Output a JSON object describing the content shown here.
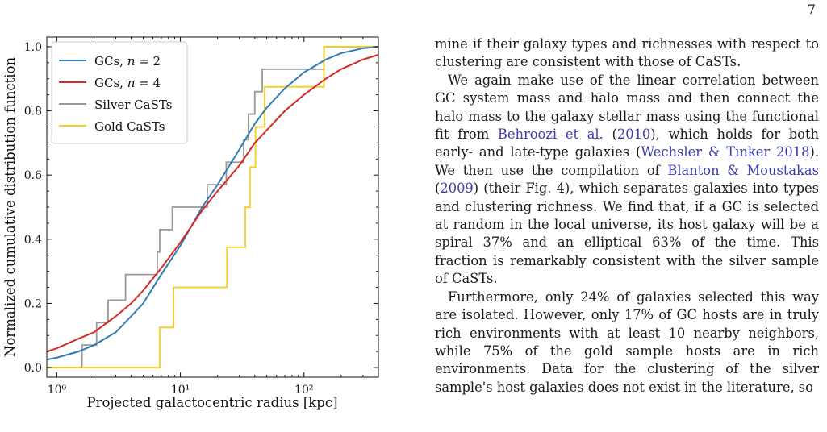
{
  "page_number": "7",
  "chart_data": {
    "type": "line",
    "title": "",
    "xlabel": "Projected galactocentric radius [kpc]",
    "ylabel": "Normalized cumulative distribution function",
    "x_scale": "log",
    "xlim": [
      0.83,
      400
    ],
    "ylim": [
      -0.03,
      1.03
    ],
    "x_tick_values": [
      1,
      10,
      100
    ],
    "x_tick_labels": [
      "10⁰",
      "10¹",
      "10²"
    ],
    "y_ticks": [
      0.0,
      0.2,
      0.4,
      0.6,
      0.8,
      1.0
    ],
    "y_tick_labels": [
      "0.0",
      "0.2",
      "0.4",
      "0.6",
      "0.8",
      "1.0"
    ],
    "grid": false,
    "legend_position": "top-left",
    "series": [
      {
        "name": "GCs, n = 2",
        "style": "line",
        "color": "#2f7bb5",
        "points": [
          [
            0.83,
            0.025
          ],
          [
            1,
            0.031
          ],
          [
            1.5,
            0.05
          ],
          [
            2,
            0.07
          ],
          [
            3,
            0.11
          ],
          [
            4,
            0.16
          ],
          [
            5,
            0.2
          ],
          [
            7,
            0.29
          ],
          [
            10,
            0.38
          ],
          [
            15,
            0.5
          ],
          [
            20,
            0.57
          ],
          [
            30,
            0.68
          ],
          [
            40,
            0.76
          ],
          [
            50,
            0.81
          ],
          [
            70,
            0.87
          ],
          [
            100,
            0.92
          ],
          [
            150,
            0.96
          ],
          [
            200,
            0.98
          ],
          [
            300,
            0.995
          ],
          [
            400,
            1.0
          ]
        ]
      },
      {
        "name": "GCs, n = 4",
        "style": "line",
        "color": "#d62a24",
        "points": [
          [
            0.83,
            0.05
          ],
          [
            1,
            0.06
          ],
          [
            1.5,
            0.09
          ],
          [
            2,
            0.11
          ],
          [
            3,
            0.16
          ],
          [
            4,
            0.2
          ],
          [
            5,
            0.24
          ],
          [
            7,
            0.31
          ],
          [
            10,
            0.39
          ],
          [
            15,
            0.49
          ],
          [
            20,
            0.55
          ],
          [
            30,
            0.63
          ],
          [
            40,
            0.7
          ],
          [
            50,
            0.74
          ],
          [
            70,
            0.8
          ],
          [
            100,
            0.85
          ],
          [
            150,
            0.9
          ],
          [
            200,
            0.93
          ],
          [
            300,
            0.96
          ],
          [
            400,
            0.975
          ]
        ]
      },
      {
        "name": "Silver CaSTs",
        "style": "step",
        "color": "#999999",
        "points": [
          [
            0.83,
            0.0
          ],
          [
            1.6,
            0.0
          ],
          [
            1.6,
            0.07
          ],
          [
            2.1,
            0.07
          ],
          [
            2.1,
            0.14
          ],
          [
            2.6,
            0.14
          ],
          [
            2.6,
            0.21
          ],
          [
            3.6,
            0.21
          ],
          [
            3.6,
            0.29
          ],
          [
            6.5,
            0.29
          ],
          [
            6.5,
            0.36
          ],
          [
            6.8,
            0.36
          ],
          [
            6.8,
            0.43
          ],
          [
            8.6,
            0.43
          ],
          [
            8.6,
            0.5
          ],
          [
            16.5,
            0.5
          ],
          [
            16.5,
            0.57
          ],
          [
            23.5,
            0.57
          ],
          [
            23.5,
            0.64
          ],
          [
            32.5,
            0.64
          ],
          [
            32.5,
            0.71
          ],
          [
            35.5,
            0.71
          ],
          [
            35.5,
            0.79
          ],
          [
            40,
            0.79
          ],
          [
            40,
            0.86
          ],
          [
            46,
            0.86
          ],
          [
            46,
            0.93
          ],
          [
            145,
            0.93
          ],
          [
            145,
            1.0
          ],
          [
            400,
            1.0
          ]
        ]
      },
      {
        "name": "Gold CaSTs",
        "style": "step",
        "color": "#f7ce1c",
        "points": [
          [
            0.83,
            0.0
          ],
          [
            6.8,
            0.0
          ],
          [
            6.8,
            0.125
          ],
          [
            8.8,
            0.125
          ],
          [
            8.8,
            0.25
          ],
          [
            23.8,
            0.25
          ],
          [
            23.8,
            0.375
          ],
          [
            33.5,
            0.375
          ],
          [
            33.5,
            0.5
          ],
          [
            36.5,
            0.5
          ],
          [
            36.5,
            0.625
          ],
          [
            40.5,
            0.625
          ],
          [
            40.5,
            0.75
          ],
          [
            48,
            0.75
          ],
          [
            48,
            0.875
          ],
          [
            145,
            0.875
          ],
          [
            145,
            1.0
          ],
          [
            400,
            1.0
          ]
        ]
      }
    ]
  },
  "legend": [
    {
      "prefix": "GCs, ",
      "var": "n",
      "suffix": " = 2"
    },
    {
      "prefix": "GCs, ",
      "var": "n",
      "suffix": " = 4"
    },
    {
      "prefix": "Silver CaSTs",
      "var": "",
      "suffix": ""
    },
    {
      "prefix": "Gold CaSTs",
      "var": "",
      "suffix": ""
    }
  ],
  "body": {
    "p1": "mine if their galaxy types and richnesses with respect to clustering are consistent with those of CaSTs.",
    "p2_a": "We again make use of the linear correlation between GC system mass and halo mass and then connect the halo mass to the galaxy stellar mass using the functional fit from ",
    "p2_cite1": "Behroozi et al.",
    "p2_b": " (",
    "p2_cite1_year": "2010",
    "p2_c": "), which holds for both early- and late-type galaxies (",
    "p2_cite2": "Wechsler & Tinker 2018",
    "p2_d": "). We then use the compilation of ",
    "p2_cite3": "Blanton & Moustakas",
    "p2_e": " (",
    "p2_cite3_year": "2009",
    "p2_f": ") (their Fig. 4), which separates galaxies into types and clustering richness. We find that, if a GC is selected at random in the local universe, its host galaxy will be a spiral 37% and an elliptical 63% of the time.  This fraction is remarkably consistent with the silver sample of CaSTs.",
    "p3": "Furthermore, only 24% of galaxies selected this way are isolated.  However, only 17% of GC hosts are in truly rich environments with at least 10 nearby neighbors, while 75% of the gold sample hosts are in rich environments. Data for the clustering of the silver sample's host galaxies does not exist in the literature, so"
  }
}
